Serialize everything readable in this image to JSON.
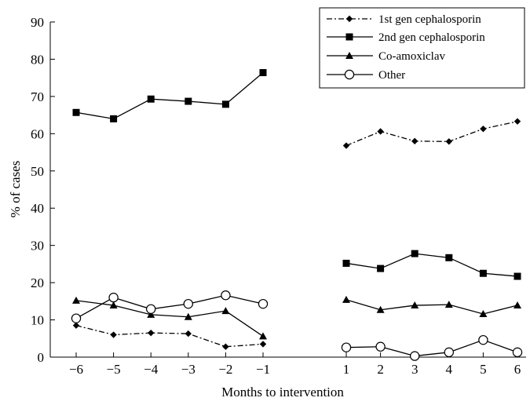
{
  "chart_data": {
    "type": "line",
    "title": "",
    "xlabel": "Months to intervention",
    "ylabel": "% of cases",
    "ylim": [
      0,
      90
    ],
    "yticks": [
      "0",
      "10",
      "20",
      "30",
      "40",
      "50",
      "60",
      "70",
      "80",
      "90"
    ],
    "xticks": [
      "−6",
      "−5",
      "−4",
      "−3",
      "−2",
      "−1",
      "1",
      "2",
      "3",
      "4",
      "5",
      "6"
    ],
    "x_values": [
      -6,
      -5,
      -4,
      -3,
      -2,
      -1,
      1,
      2,
      3,
      4,
      5,
      6
    ],
    "grid": false,
    "legend_position": "top-right",
    "series": [
      {
        "name": "1st gen cephalosporin",
        "marker": "diamond",
        "line": "dash-dot",
        "segments": [
          {
            "x": [
              -6,
              -5,
              -4,
              -3,
              -2,
              -1
            ],
            "y": [
              8.5,
              6.0,
              6.5,
              6.3,
              2.8,
              3.5
            ]
          },
          {
            "x": [
              1,
              2,
              3,
              4,
              5,
              6
            ],
            "y": [
              56.8,
              60.6,
              58.0,
              57.9,
              61.3,
              63.3
            ]
          }
        ]
      },
      {
        "name": "2nd gen cephalosporin",
        "marker": "square",
        "line": "solid",
        "segments": [
          {
            "x": [
              -6,
              -5,
              -4,
              -3,
              -2,
              -1
            ],
            "y": [
              65.7,
              64.0,
              69.3,
              68.7,
              67.9,
              76.4
            ]
          },
          {
            "x": [
              1,
              2,
              3,
              4,
              5,
              6
            ],
            "y": [
              25.2,
              23.8,
              27.8,
              26.7,
              22.5,
              21.7
            ]
          }
        ]
      },
      {
        "name": "Co-amoxiclav",
        "marker": "triangle",
        "line": "solid",
        "segments": [
          {
            "x": [
              -6,
              -5,
              -4,
              -3,
              -2,
              -1
            ],
            "y": [
              15.2,
              13.9,
              11.4,
              10.8,
              12.4,
              5.6
            ]
          },
          {
            "x": [
              1,
              2,
              3,
              4,
              5,
              6
            ],
            "y": [
              15.4,
              12.7,
              13.9,
              14.1,
              11.6,
              13.9
            ]
          }
        ]
      },
      {
        "name": "Other",
        "marker": "circle-open",
        "line": "solid",
        "segments": [
          {
            "x": [
              -6,
              -5,
              -4,
              -3,
              -2,
              -1
            ],
            "y": [
              10.4,
              16.0,
              12.9,
              14.3,
              16.6,
              14.3
            ]
          },
          {
            "x": [
              1,
              2,
              3,
              4,
              5,
              6
            ],
            "y": [
              2.6,
              2.8,
              0.3,
              1.3,
              4.6,
              1.3
            ]
          }
        ]
      }
    ]
  }
}
